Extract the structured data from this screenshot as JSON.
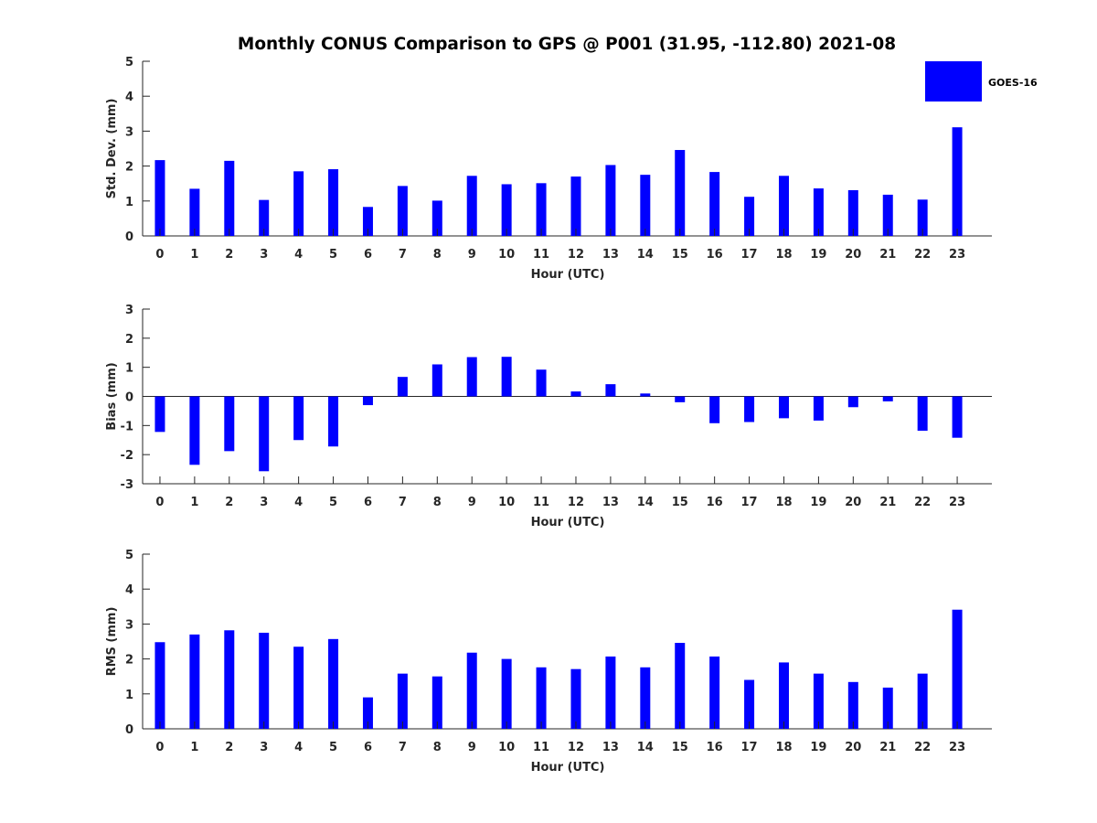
{
  "title": "Monthly CONUS Comparison to GPS @ P001 (31.95, -112.80) 2021-08",
  "legend": {
    "label": "GOES-16",
    "color": "#0000ff"
  },
  "chart_data": [
    {
      "type": "bar",
      "id": "stddev",
      "ylabel": "Std. Dev. (mm)",
      "xlabel": "Hour (UTC)",
      "categories": [
        "0",
        "1",
        "2",
        "3",
        "4",
        "5",
        "6",
        "7",
        "8",
        "9",
        "10",
        "11",
        "12",
        "13",
        "14",
        "15",
        "16",
        "17",
        "18",
        "19",
        "20",
        "21",
        "22",
        "23"
      ],
      "series": [
        {
          "name": "GOES-16",
          "values": [
            2.17,
            1.35,
            2.15,
            1.03,
            1.85,
            1.91,
            0.83,
            1.43,
            1.01,
            1.72,
            1.48,
            1.51,
            1.7,
            2.03,
            1.75,
            2.46,
            1.83,
            1.12,
            1.72,
            1.36,
            1.31,
            1.18,
            1.04,
            3.11
          ]
        }
      ],
      "ylim": [
        0,
        5
      ],
      "yticks": [
        "0",
        "1",
        "2",
        "3",
        "4",
        "5"
      ],
      "ytick_values": [
        0,
        1,
        2,
        3,
        4,
        5
      ]
    },
    {
      "type": "bar",
      "id": "bias",
      "ylabel": "Bias (mm)",
      "xlabel": "Hour (UTC)",
      "categories": [
        "0",
        "1",
        "2",
        "3",
        "4",
        "5",
        "6",
        "7",
        "8",
        "9",
        "10",
        "11",
        "12",
        "13",
        "14",
        "15",
        "16",
        "17",
        "18",
        "19",
        "20",
        "21",
        "22",
        "23"
      ],
      "series": [
        {
          "name": "GOES-16",
          "values": [
            -1.22,
            -2.35,
            -1.88,
            -2.57,
            -1.5,
            -1.72,
            -0.3,
            0.67,
            1.1,
            1.35,
            1.36,
            0.92,
            0.17,
            0.42,
            0.1,
            -0.2,
            -0.92,
            -0.88,
            -0.75,
            -0.83,
            -0.37,
            -0.17,
            -1.18,
            -1.42
          ]
        }
      ],
      "ylim": [
        -3,
        3
      ],
      "yticks": [
        "-3",
        "-2",
        "-1",
        "0",
        "1",
        "2",
        "3"
      ],
      "ytick_values": [
        -3,
        -2,
        -1,
        0,
        1,
        2,
        3
      ]
    },
    {
      "type": "bar",
      "id": "rms",
      "ylabel": "RMS (mm)",
      "xlabel": "Hour (UTC)",
      "categories": [
        "0",
        "1",
        "2",
        "3",
        "4",
        "5",
        "6",
        "7",
        "8",
        "9",
        "10",
        "11",
        "12",
        "13",
        "14",
        "15",
        "16",
        "17",
        "18",
        "19",
        "20",
        "21",
        "22",
        "23"
      ],
      "series": [
        {
          "name": "GOES-16",
          "values": [
            2.48,
            2.7,
            2.82,
            2.75,
            2.35,
            2.57,
            0.9,
            1.58,
            1.5,
            2.18,
            2.0,
            1.76,
            1.71,
            2.07,
            1.76,
            2.46,
            2.07,
            1.4,
            1.9,
            1.58,
            1.34,
            1.18,
            1.58,
            3.41
          ]
        }
      ],
      "ylim": [
        0,
        5
      ],
      "yticks": [
        "0",
        "1",
        "2",
        "3",
        "4",
        "5"
      ],
      "ytick_values": [
        0,
        1,
        2,
        3,
        4,
        5
      ]
    }
  ]
}
